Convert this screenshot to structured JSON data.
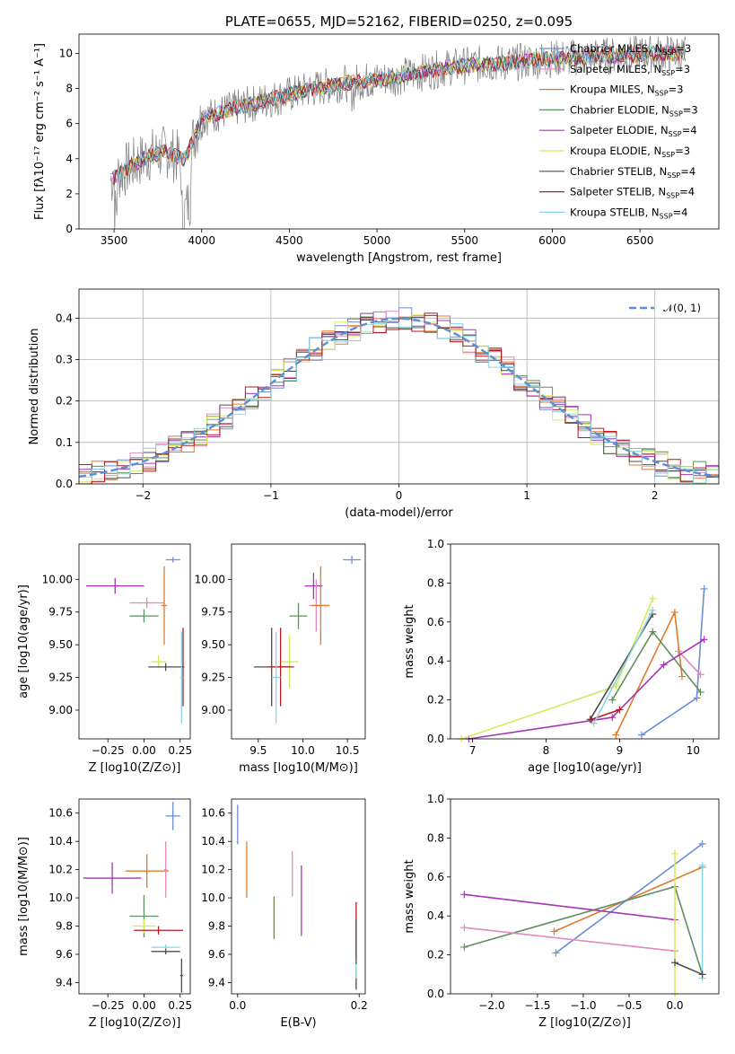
{
  "chart_data": [
    {
      "type": "line",
      "title": "PLATE=0655, MJD=52162, FIBERID=0250, z=0.095",
      "xlabel": "wavelength [Angstrom, rest frame]",
      "ylabel": "Flux [fλ10⁻¹⁷ erg cm⁻² s⁻¹ A⁻¹]",
      "xlim": [
        3300,
        6950
      ],
      "ylim": [
        0,
        11.1
      ],
      "xticks": [
        "3500",
        "4000",
        "4500",
        "5000",
        "5500",
        "6000",
        "6500"
      ],
      "yticks": [
        "0",
        "2",
        "4",
        "6",
        "8",
        "10"
      ],
      "grid": false,
      "legend_position": "upper right",
      "data_color": "#808080",
      "data_anchor": {
        "x": [
          3480,
          3600,
          3700,
          3800,
          3900,
          4000,
          4200,
          4400,
          4600,
          4800,
          5000,
          5200,
          5400,
          5600,
          5800,
          6000,
          6200,
          6400,
          6600,
          6700
        ],
        "y": [
          2.8,
          3.6,
          4.2,
          4.4,
          3.9,
          6.3,
          6.9,
          7.4,
          7.9,
          8.3,
          8.5,
          8.8,
          9.2,
          9.4,
          9.5,
          9.7,
          9.8,
          9.9,
          10.0,
          10.0
        ]
      },
      "legend": [
        {
          "label": "Chabrier MILES, N_SSP=3",
          "color": "#6b8ed6"
        },
        {
          "label": "Salpeter MILES, N_SSP=3",
          "color": "#e389c0"
        },
        {
          "label": "Kroupa MILES, N_SSP=3",
          "color": "#e07b2e"
        },
        {
          "label": "Chabrier ELODIE, N_SSP=3",
          "color": "#5e8f5e"
        },
        {
          "label": "Salpeter ELODIE, N_SSP=4",
          "color": "#a334b5"
        },
        {
          "label": "Kroupa ELODIE, N_SSP=3",
          "color": "#d8e85e"
        },
        {
          "label": "Chabrier STELIB, N_SSP=4",
          "color": "#4d4d4d"
        },
        {
          "label": "Salpeter STELIB, N_SSP=4",
          "color": "#b31b1b"
        },
        {
          "label": "Kroupa STELIB, N_SSP=4",
          "color": "#86d6e6"
        }
      ]
    },
    {
      "type": "area",
      "xlabel": "(data-model)/error",
      "ylabel": "Normed distribution",
      "xlim": [
        -2.5,
        2.5
      ],
      "ylim": [
        0,
        0.47
      ],
      "xticks": [
        "−2",
        "−1",
        "0",
        "1",
        "2"
      ],
      "yticks": [
        "0.0",
        "0.1",
        "0.2",
        "0.3",
        "0.4"
      ],
      "grid": true,
      "legend": [
        {
          "label": "𝒩(0, 1)",
          "color": "#5b8fd6"
        }
      ]
    },
    {
      "type": "scatter",
      "xlabel": "Z [log10(Z/Z⊙)]",
      "ylabel": "age  [log10(age/yr)]",
      "xlim": [
        -0.45,
        0.32
      ],
      "ylim": [
        8.78,
        10.27
      ],
      "xticks": [
        "−0.25",
        "0.00",
        "0.25"
      ],
      "yticks": [
        "9.00",
        "9.25",
        "9.50",
        "9.75",
        "10.00"
      ],
      "points": [
        {
          "x": 0.2,
          "y": 10.15,
          "xerr": 0.05,
          "yerr": 0.02,
          "color": "#6b8ed6"
        },
        {
          "x": -0.2,
          "y": 9.95,
          "xerr": 0.2,
          "yerr": 0.06,
          "color": "#a334b5"
        },
        {
          "x": 0.02,
          "y": 9.82,
          "xerr": 0.12,
          "yerr": 0.04,
          "color": "#e389c0"
        },
        {
          "x": 0.14,
          "y": 9.8,
          "xerr": 0.02,
          "yerr": 0.3,
          "color": "#e07b2e"
        },
        {
          "x": 0.0,
          "y": 9.72,
          "xerr": 0.1,
          "yerr": 0.05,
          "color": "#5e8f5e"
        },
        {
          "x": 0.1,
          "y": 9.37,
          "xerr": 0.05,
          "yerr": 0.05,
          "color": "#d8e85e"
        },
        {
          "x": 0.15,
          "y": 9.33,
          "xerr": 0.12,
          "yerr": 0.03,
          "color": "#4d4d4d"
        },
        {
          "x": 0.27,
          "y": 9.33,
          "xerr": 0.01,
          "yerr": 0.3,
          "color": "#b31b1b"
        },
        {
          "x": 0.26,
          "y": 9.25,
          "xerr": 0.01,
          "yerr": 0.35,
          "color": "#86d6e6"
        }
      ]
    },
    {
      "type": "scatter",
      "xlabel": "mass [log10(M/M⊙)]",
      "xlim": [
        9.2,
        10.7
      ],
      "ylim": [
        8.78,
        10.27
      ],
      "xticks": [
        "9.5",
        "10.0",
        "10.5"
      ],
      "yticks": [
        "9.00",
        "9.25",
        "9.50",
        "9.75",
        "10.00"
      ],
      "points": [
        {
          "x": 10.55,
          "y": 10.15,
          "xerr": 0.1,
          "yerr": 0.03,
          "color": "#6b8ed6"
        },
        {
          "x": 10.12,
          "y": 9.95,
          "xerr": 0.1,
          "yerr": 0.1,
          "color": "#a334b5"
        },
        {
          "x": 10.15,
          "y": 9.8,
          "xerr": 0.08,
          "yerr": 0.2,
          "color": "#e389c0"
        },
        {
          "x": 10.2,
          "y": 9.8,
          "xerr": 0.1,
          "yerr": 0.3,
          "color": "#e07b2e"
        },
        {
          "x": 9.95,
          "y": 9.72,
          "xerr": 0.1,
          "yerr": 0.1,
          "color": "#5e8f5e"
        },
        {
          "x": 9.85,
          "y": 9.37,
          "xerr": 0.1,
          "yerr": 0.2,
          "color": "#d8e85e"
        },
        {
          "x": 9.65,
          "y": 9.33,
          "xerr": 0.2,
          "yerr": 0.3,
          "color": "#4d4d4d"
        },
        {
          "x": 9.75,
          "y": 9.33,
          "xerr": 0.15,
          "yerr": 0.3,
          "color": "#b31b1b"
        },
        {
          "x": 9.7,
          "y": 9.25,
          "xerr": 0.05,
          "yerr": 0.35,
          "color": "#86d6e6"
        }
      ]
    },
    {
      "type": "line",
      "xlabel": "age  [log10(age/yr)]",
      "ylabel": "mass weight",
      "xlim": [
        6.7,
        10.35
      ],
      "ylim": [
        0,
        1
      ],
      "xticks": [
        "7",
        "8",
        "9",
        "10"
      ],
      "yticks": [
        "0.0",
        "0.2",
        "0.4",
        "0.6",
        "0.8",
        "1.0"
      ],
      "series": [
        {
          "color": "#6b8ed6",
          "x": [
            9.3,
            10.05,
            10.15
          ],
          "y": [
            0.02,
            0.21,
            0.77
          ]
        },
        {
          "color": "#e389c0",
          "x": [
            9.8,
            10.1
          ],
          "y": [
            0.45,
            0.33
          ]
        },
        {
          "color": "#e07b2e",
          "x": [
            8.95,
            9.75,
            9.85
          ],
          "y": [
            0.02,
            0.65,
            0.32
          ]
        },
        {
          "color": "#5e8f5e",
          "x": [
            8.9,
            9.45,
            10.1
          ],
          "y": [
            0.2,
            0.55,
            0.24
          ]
        },
        {
          "color": "#a334b5",
          "x": [
            6.95,
            8.9,
            9.6,
            10.15
          ],
          "y": [
            0.0,
            0.11,
            0.38,
            0.51
          ]
        },
        {
          "color": "#d8e85e",
          "x": [
            6.85,
            8.95,
            9.45
          ],
          "y": [
            0.0,
            0.27,
            0.72
          ]
        },
        {
          "color": "#4d4d4d",
          "x": [
            8.6,
            9.45
          ],
          "y": [
            0.1,
            0.64
          ]
        },
        {
          "color": "#b31b1b",
          "x": [
            8.62,
            9.0
          ],
          "y": [
            0.1,
            0.15
          ]
        },
        {
          "color": "#86d6e6",
          "x": [
            8.65,
            9.45
          ],
          "y": [
            0.08,
            0.66
          ]
        }
      ]
    },
    {
      "type": "scatter",
      "xlabel": "Z [log10(Z/Z⊙)]",
      "ylabel": "mass [log10(M/M⊙)]",
      "xlim": [
        -0.45,
        0.32
      ],
      "ylim": [
        9.32,
        10.7
      ],
      "xticks": [
        "−0.25",
        "0.00",
        "0.25"
      ],
      "yticks": [
        "9.4",
        "9.6",
        "9.8",
        "10.0",
        "10.2",
        "10.4",
        "10.6"
      ],
      "points": [
        {
          "x": 0.2,
          "y": 10.58,
          "xerr": 0.05,
          "yerr": 0.1,
          "color": "#6b8ed6"
        },
        {
          "x": -0.22,
          "y": 10.14,
          "xerr": 0.2,
          "yerr": 0.11,
          "color": "#a334b5"
        },
        {
          "x": 0.02,
          "y": 10.19,
          "xerr": 0.15,
          "yerr": 0.12,
          "color": "#e07b2e"
        },
        {
          "x": 0.15,
          "y": 10.2,
          "xerr": 0.01,
          "yerr": 0.2,
          "color": "#e389c0"
        },
        {
          "x": 0.0,
          "y": 9.87,
          "xerr": 0.1,
          "yerr": 0.15,
          "color": "#5e8f5e"
        },
        {
          "x": 0.0,
          "y": 9.8,
          "xerr": 0.08,
          "yerr": 0.05,
          "color": "#d8e85e"
        },
        {
          "x": 0.1,
          "y": 9.77,
          "xerr": 0.17,
          "yerr": 0.03,
          "color": "#b31b1b"
        },
        {
          "x": 0.15,
          "y": 9.65,
          "xerr": 0.1,
          "yerr": 0.02,
          "color": "#86d6e6"
        },
        {
          "x": 0.15,
          "y": 9.62,
          "xerr": 0.1,
          "yerr": 0.02,
          "color": "#4d4d4d"
        },
        {
          "x": 0.26,
          "y": 9.45,
          "xerr": 0.01,
          "yerr": 0.12,
          "color": "#4d4d4d"
        }
      ]
    },
    {
      "type": "scatter",
      "xlabel": "E(B-V)",
      "xlim": [
        -0.01,
        0.21
      ],
      "ylim": [
        9.32,
        10.7
      ],
      "xticks": [
        "0.0",
        "0.2"
      ],
      "yticks": [
        "9.4",
        "9.6",
        "9.8",
        "10.0",
        "10.2",
        "10.4",
        "10.6"
      ],
      "points": [
        {
          "x": 0.0,
          "y": 10.52,
          "yerr": 0.14,
          "color": "#6b8ed6"
        },
        {
          "x": 0.015,
          "y": 10.2,
          "yerr": 0.2,
          "color": "#e07b2e"
        },
        {
          "x": 0.06,
          "y": 9.86,
          "yerr": 0.15,
          "color": "#d8e85e"
        },
        {
          "x": 0.06,
          "y": 9.86,
          "yerr": 0.15,
          "color": "#5e8f5e"
        },
        {
          "x": 0.09,
          "y": 10.17,
          "yerr": 0.16,
          "color": "#e389c0"
        },
        {
          "x": 0.105,
          "y": 9.98,
          "yerr": 0.25,
          "color": "#a334b5"
        },
        {
          "x": 0.195,
          "y": 9.77,
          "yerr": 0.2,
          "color": "#b31b1b"
        },
        {
          "x": 0.195,
          "y": 9.6,
          "yerr": 0.25,
          "color": "#4d4d4d"
        },
        {
          "x": 0.195,
          "y": 9.48,
          "yerr": 0.05,
          "color": "#86d6e6"
        }
      ]
    },
    {
      "type": "line",
      "xlabel": "Z [log10(Z/Z⊙)]",
      "ylabel": "mass weight",
      "xlim": [
        -2.45,
        0.48
      ],
      "ylim": [
        0,
        1
      ],
      "xticks": [
        "−2.0",
        "−1.5",
        "−1.0",
        "−0.5",
        "0.0"
      ],
      "yticks": [
        "0.0",
        "0.2",
        "0.4",
        "0.6",
        "0.8",
        "1.0"
      ],
      "series": [
        {
          "color": "#6b8ed6",
          "x": [
            -1.3,
            0.3
          ],
          "y": [
            0.21,
            0.77
          ]
        },
        {
          "color": "#e07b2e",
          "x": [
            -1.32,
            0.3
          ],
          "y": [
            0.32,
            0.65
          ]
        },
        {
          "color": "#5e8f5e",
          "x": [
            -2.3,
            0.0,
            0.3
          ],
          "y": [
            0.24,
            0.55,
            0.1
          ]
        },
        {
          "color": "#a334b5",
          "x": [
            -2.3,
            0.0
          ],
          "y": [
            0.51,
            0.38
          ]
        },
        {
          "color": "#e389c0",
          "x": [
            -2.3,
            0.0
          ],
          "y": [
            0.34,
            0.22
          ]
        },
        {
          "color": "#d8e85e",
          "x": [
            0.0,
            0.0
          ],
          "y": [
            0.72,
            0.0
          ]
        },
        {
          "color": "#86d6e6",
          "x": [
            0.3,
            0.3
          ],
          "y": [
            0.66,
            0.08
          ]
        },
        {
          "color": "#4d4d4d",
          "x": [
            0.0,
            0.3
          ],
          "y": [
            0.16,
            0.1
          ]
        }
      ]
    }
  ],
  "legend_texts": {
    "n_ssp3": "N",
    "sub": "SSP",
    "normal_label": "𝒩(0, 1)"
  }
}
